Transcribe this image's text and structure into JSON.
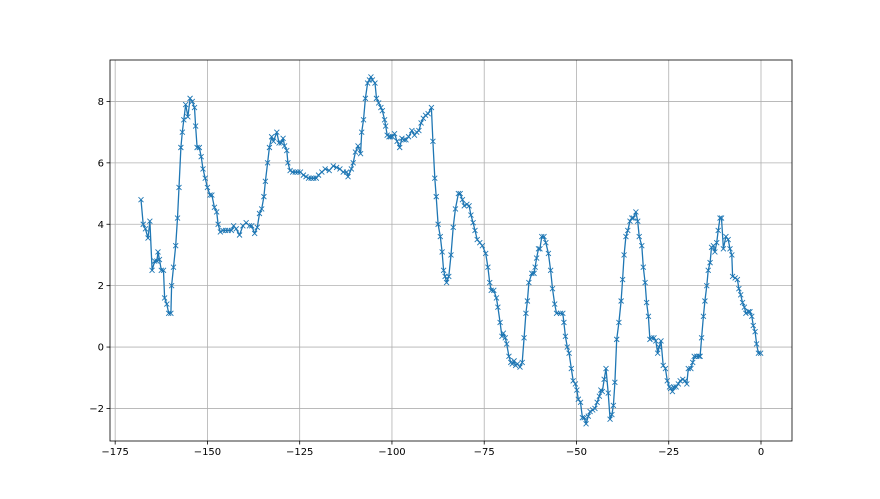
{
  "chart_data": {
    "type": "line",
    "title": "",
    "xlabel": "",
    "ylabel": "",
    "xlim": [
      -176.4,
      8.4
    ],
    "ylim": [
      -3.06,
      9.35
    ],
    "grid": true,
    "marker": "x",
    "line_color": "#1f77b4",
    "grid_color": "#b0b0b0",
    "x_ticks": [
      -175,
      -150,
      -125,
      -100,
      -75,
      -50,
      -25,
      0
    ],
    "x_tick_labels": [
      "−175",
      "−150",
      "−125",
      "−100",
      "−75",
      "−50",
      "−25",
      "0"
    ],
    "y_ticks": [
      -2,
      0,
      2,
      4,
      6,
      8
    ],
    "y_tick_labels": [
      "−2",
      "0",
      "2",
      "4",
      "6",
      "8"
    ],
    "series": [
      {
        "points": [
          [
            -168.0,
            4.8
          ],
          [
            -167.4,
            4.0
          ],
          [
            -166.8,
            3.85
          ],
          [
            -166.1,
            3.55
          ],
          [
            -165.6,
            4.1
          ],
          [
            -165.0,
            2.5
          ],
          [
            -164.3,
            2.8
          ],
          [
            -163.7,
            2.8
          ],
          [
            -163.4,
            3.1
          ],
          [
            -163.0,
            2.85
          ],
          [
            -162.5,
            2.5
          ],
          [
            -161.9,
            2.5
          ],
          [
            -161.6,
            1.6
          ],
          [
            -161.0,
            1.4
          ],
          [
            -160.5,
            1.1
          ],
          [
            -159.9,
            1.1
          ],
          [
            -159.7,
            2.0
          ],
          [
            -159.2,
            2.6
          ],
          [
            -158.6,
            3.3
          ],
          [
            -158.1,
            4.2
          ],
          [
            -157.7,
            5.2
          ],
          [
            -157.2,
            6.5
          ],
          [
            -156.8,
            7.0
          ],
          [
            -156.4,
            7.4
          ],
          [
            -155.9,
            7.9
          ],
          [
            -155.3,
            7.5
          ],
          [
            -154.7,
            8.1
          ],
          [
            -154.1,
            8.0
          ],
          [
            -153.5,
            7.8
          ],
          [
            -153.2,
            7.2
          ],
          [
            -152.8,
            6.5
          ],
          [
            -152.2,
            6.5
          ],
          [
            -151.7,
            6.2
          ],
          [
            -151.2,
            5.8
          ],
          [
            -150.6,
            5.5
          ],
          [
            -150.0,
            5.2
          ],
          [
            -149.3,
            4.95
          ],
          [
            -148.8,
            4.95
          ],
          [
            -148.1,
            4.55
          ],
          [
            -147.5,
            4.4
          ],
          [
            -147.1,
            4.0
          ],
          [
            -146.5,
            3.75
          ],
          [
            -145.8,
            3.8
          ],
          [
            -145.1,
            3.8
          ],
          [
            -144.4,
            3.8
          ],
          [
            -143.5,
            3.8
          ],
          [
            -142.9,
            3.95
          ],
          [
            -142.2,
            3.85
          ],
          [
            -141.3,
            3.65
          ],
          [
            -140.4,
            3.95
          ],
          [
            -139.5,
            4.05
          ],
          [
            -138.6,
            3.95
          ],
          [
            -138.0,
            3.95
          ],
          [
            -137.2,
            3.7
          ],
          [
            -136.5,
            3.9
          ],
          [
            -135.9,
            4.35
          ],
          [
            -135.3,
            4.5
          ],
          [
            -134.7,
            4.9
          ],
          [
            -134.3,
            5.4
          ],
          [
            -133.7,
            6.0
          ],
          [
            -133.2,
            6.5
          ],
          [
            -132.6,
            6.85
          ],
          [
            -132.1,
            6.7
          ],
          [
            -131.2,
            7.0
          ],
          [
            -130.6,
            6.65
          ],
          [
            -130.0,
            6.65
          ],
          [
            -129.5,
            6.8
          ],
          [
            -129.1,
            6.55
          ],
          [
            -128.5,
            6.4
          ],
          [
            -128.2,
            6.0
          ],
          [
            -127.6,
            5.75
          ],
          [
            -126.9,
            5.7
          ],
          [
            -126.2,
            5.7
          ],
          [
            -125.5,
            5.7
          ],
          [
            -124.8,
            5.7
          ],
          [
            -124.0,
            5.6
          ],
          [
            -123.3,
            5.55
          ],
          [
            -122.6,
            5.5
          ],
          [
            -121.9,
            5.5
          ],
          [
            -121.2,
            5.5
          ],
          [
            -120.5,
            5.5
          ],
          [
            -119.9,
            5.6
          ],
          [
            -119.0,
            5.7
          ],
          [
            -118.1,
            5.8
          ],
          [
            -117.0,
            5.75
          ],
          [
            -115.9,
            5.9
          ],
          [
            -115.0,
            5.85
          ],
          [
            -114.1,
            5.8
          ],
          [
            -113.2,
            5.7
          ],
          [
            -112.3,
            5.7
          ],
          [
            -111.9,
            5.55
          ],
          [
            -111.0,
            5.8
          ],
          [
            -110.5,
            6.0
          ],
          [
            -109.9,
            6.35
          ],
          [
            -109.2,
            6.55
          ],
          [
            -108.5,
            6.3
          ],
          [
            -108.2,
            7.0
          ],
          [
            -107.7,
            7.4
          ],
          [
            -107.2,
            8.1
          ],
          [
            -106.6,
            8.6
          ],
          [
            -106.1,
            8.7
          ],
          [
            -105.7,
            8.8
          ],
          [
            -105.3,
            8.7
          ],
          [
            -104.6,
            8.6
          ],
          [
            -104.2,
            8.1
          ],
          [
            -103.6,
            7.95
          ],
          [
            -103.0,
            7.8
          ],
          [
            -102.6,
            7.7
          ],
          [
            -102.0,
            7.4
          ],
          [
            -101.7,
            7.2
          ],
          [
            -101.3,
            6.9
          ],
          [
            -100.8,
            6.85
          ],
          [
            -100.4,
            6.85
          ],
          [
            -99.9,
            6.85
          ],
          [
            -99.3,
            6.95
          ],
          [
            -98.6,
            6.7
          ],
          [
            -97.9,
            6.5
          ],
          [
            -97.3,
            6.8
          ],
          [
            -96.7,
            6.75
          ],
          [
            -96.2,
            6.75
          ],
          [
            -95.5,
            6.85
          ],
          [
            -94.6,
            7.05
          ],
          [
            -93.9,
            6.9
          ],
          [
            -93.3,
            7.0
          ],
          [
            -92.7,
            7.05
          ],
          [
            -92.1,
            7.3
          ],
          [
            -91.5,
            7.45
          ],
          [
            -90.9,
            7.55
          ],
          [
            -90.2,
            7.6
          ],
          [
            -89.3,
            7.8
          ],
          [
            -88.9,
            6.7
          ],
          [
            -88.4,
            5.5
          ],
          [
            -88.0,
            4.9
          ],
          [
            -87.5,
            4.0
          ],
          [
            -86.9,
            3.6
          ],
          [
            -86.4,
            3.1
          ],
          [
            -86.0,
            2.5
          ],
          [
            -85.6,
            2.3
          ],
          [
            -85.2,
            2.1
          ],
          [
            -84.6,
            2.3
          ],
          [
            -84.0,
            3.0
          ],
          [
            -83.4,
            3.9
          ],
          [
            -82.8,
            4.5
          ],
          [
            -82.0,
            5.0
          ],
          [
            -81.5,
            5.0
          ],
          [
            -80.9,
            4.8
          ],
          [
            -80.4,
            4.6
          ],
          [
            -79.7,
            4.65
          ],
          [
            -79.1,
            4.6
          ],
          [
            -78.6,
            4.3
          ],
          [
            -78.0,
            4.05
          ],
          [
            -77.5,
            3.8
          ],
          [
            -76.9,
            3.5
          ],
          [
            -76.2,
            3.4
          ],
          [
            -75.5,
            3.3
          ],
          [
            -74.6,
            3.05
          ],
          [
            -74.0,
            2.6
          ],
          [
            -73.5,
            2.1
          ],
          [
            -73.1,
            1.85
          ],
          [
            -72.4,
            1.85
          ],
          [
            -71.7,
            1.6
          ],
          [
            -71.3,
            1.3
          ],
          [
            -70.7,
            0.8
          ],
          [
            -70.2,
            0.35
          ],
          [
            -69.8,
            0.45
          ],
          [
            -69.3,
            0.3
          ],
          [
            -68.9,
            0.1
          ],
          [
            -68.3,
            -0.3
          ],
          [
            -67.8,
            -0.5
          ],
          [
            -67.4,
            -0.55
          ],
          [
            -66.9,
            -0.45
          ],
          [
            -66.5,
            -0.6
          ],
          [
            -66.0,
            -0.55
          ],
          [
            -65.3,
            -0.65
          ],
          [
            -64.7,
            -0.5
          ],
          [
            -64.2,
            0.3
          ],
          [
            -63.7,
            1.1
          ],
          [
            -63.3,
            1.5
          ],
          [
            -62.9,
            2.1
          ],
          [
            -62.1,
            2.4
          ],
          [
            -61.5,
            2.4
          ],
          [
            -61.2,
            2.6
          ],
          [
            -60.8,
            2.9
          ],
          [
            -60.3,
            3.2
          ],
          [
            -59.9,
            3.2
          ],
          [
            -59.4,
            3.6
          ],
          [
            -58.8,
            3.6
          ],
          [
            -58.3,
            3.4
          ],
          [
            -57.6,
            3.05
          ],
          [
            -57.0,
            2.5
          ],
          [
            -56.5,
            1.9
          ],
          [
            -55.9,
            1.4
          ],
          [
            -55.4,
            1.1
          ],
          [
            -54.3,
            1.1
          ],
          [
            -53.7,
            1.1
          ],
          [
            -53.4,
            0.8
          ],
          [
            -53.0,
            0.35
          ],
          [
            -52.5,
            0.0
          ],
          [
            -52.0,
            -0.2
          ],
          [
            -51.4,
            -0.7
          ],
          [
            -50.9,
            -1.1
          ],
          [
            -50.3,
            -1.2
          ],
          [
            -49.9,
            -1.4
          ],
          [
            -49.5,
            -1.7
          ],
          [
            -48.9,
            -1.8
          ],
          [
            -48.4,
            -2.3
          ],
          [
            -47.9,
            -2.3
          ],
          [
            -47.4,
            -2.5
          ],
          [
            -46.8,
            -2.25
          ],
          [
            -46.3,
            -2.1
          ],
          [
            -45.6,
            -2.05
          ],
          [
            -45.0,
            -2.0
          ],
          [
            -44.4,
            -1.8
          ],
          [
            -43.8,
            -1.6
          ],
          [
            -43.4,
            -1.4
          ],
          [
            -43.0,
            -1.45
          ],
          [
            -42.5,
            -1.05
          ],
          [
            -42.0,
            -0.7
          ],
          [
            -41.4,
            -1.5
          ],
          [
            -40.9,
            -2.35
          ],
          [
            -40.4,
            -2.2
          ],
          [
            -40.0,
            -1.9
          ],
          [
            -39.6,
            -1.15
          ],
          [
            -39.1,
            0.25
          ],
          [
            -38.5,
            0.8
          ],
          [
            -37.9,
            1.5
          ],
          [
            -37.5,
            2.2
          ],
          [
            -37.1,
            3.0
          ],
          [
            -36.6,
            3.6
          ],
          [
            -36.1,
            3.8
          ],
          [
            -35.5,
            4.1
          ],
          [
            -35.0,
            4.2
          ],
          [
            -34.6,
            4.2
          ],
          [
            -33.9,
            4.4
          ],
          [
            -33.4,
            4.1
          ],
          [
            -33.0,
            3.6
          ],
          [
            -32.3,
            3.3
          ],
          [
            -31.9,
            2.6
          ],
          [
            -31.4,
            2.1
          ],
          [
            -31.0,
            1.45
          ],
          [
            -30.5,
            1.0
          ],
          [
            -30.1,
            0.25
          ],
          [
            -29.6,
            0.3
          ],
          [
            -29.0,
            0.3
          ],
          [
            -28.5,
            0.2
          ],
          [
            -28.0,
            -0.2
          ],
          [
            -27.6,
            0.0
          ],
          [
            -27.1,
            0.2
          ],
          [
            -26.5,
            -0.6
          ],
          [
            -25.9,
            -0.7
          ],
          [
            -25.4,
            -1.1
          ],
          [
            -24.8,
            -1.3
          ],
          [
            -24.5,
            -1.35
          ],
          [
            -24.0,
            -1.45
          ],
          [
            -23.6,
            -1.3
          ],
          [
            -23.0,
            -1.3
          ],
          [
            -22.4,
            -1.2
          ],
          [
            -21.9,
            -1.1
          ],
          [
            -21.2,
            -1.05
          ],
          [
            -20.6,
            -1.1
          ],
          [
            -20.1,
            -1.2
          ],
          [
            -19.7,
            -0.7
          ],
          [
            -19.0,
            -0.7
          ],
          [
            -18.5,
            -0.5
          ],
          [
            -18.1,
            -0.3
          ],
          [
            -17.4,
            -0.3
          ],
          [
            -16.8,
            -0.3
          ],
          [
            -16.5,
            -0.3
          ],
          [
            -16.1,
            0.3
          ],
          [
            -15.6,
            1.0
          ],
          [
            -15.2,
            1.5
          ],
          [
            -14.7,
            2.0
          ],
          [
            -14.3,
            2.5
          ],
          [
            -13.8,
            2.75
          ],
          [
            -13.4,
            3.25
          ],
          [
            -12.9,
            3.3
          ],
          [
            -12.5,
            3.1
          ],
          [
            -12.0,
            3.4
          ],
          [
            -11.6,
            3.8
          ],
          [
            -11.1,
            4.2
          ],
          [
            -10.7,
            4.2
          ],
          [
            -10.2,
            3.2
          ],
          [
            -9.5,
            3.6
          ],
          [
            -8.9,
            3.5
          ],
          [
            -8.4,
            3.2
          ],
          [
            -7.9,
            3.0
          ],
          [
            -7.7,
            2.3
          ],
          [
            -7.0,
            2.25
          ],
          [
            -6.4,
            2.2
          ],
          [
            -6.0,
            1.9
          ],
          [
            -5.5,
            1.7
          ],
          [
            -5.0,
            1.45
          ],
          [
            -4.5,
            1.3
          ],
          [
            -4.1,
            1.1
          ],
          [
            -3.4,
            1.15
          ],
          [
            -3.0,
            1.15
          ],
          [
            -2.5,
            1.0
          ],
          [
            -2.1,
            0.7
          ],
          [
            -1.6,
            0.5
          ],
          [
            -1.2,
            0.1
          ],
          [
            -0.7,
            -0.2
          ],
          [
            -0.1,
            -0.2
          ]
        ]
      }
    ]
  }
}
